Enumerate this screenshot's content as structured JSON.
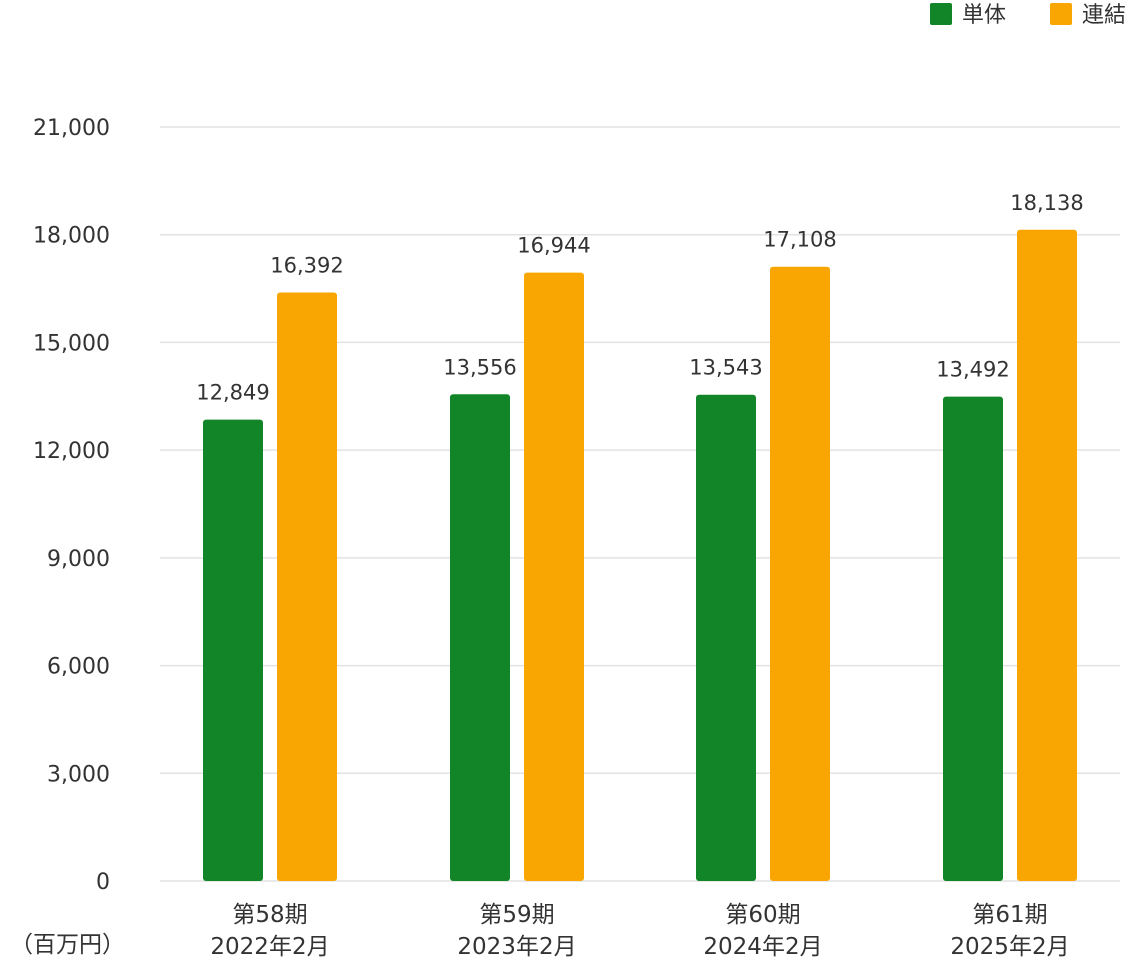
{
  "chart_data": {
    "type": "bar",
    "categories": [
      [
        "第58期",
        "2022年2月"
      ],
      [
        "第59期",
        "2023年2月"
      ],
      [
        "第60期",
        "2024年2月"
      ],
      [
        "第61期",
        "2025年2月"
      ]
    ],
    "series": [
      {
        "name": "単体",
        "color": "#128529",
        "values": [
          12849,
          13556,
          13543,
          13492
        ]
      },
      {
        "name": "連結",
        "color": "#F9A602",
        "values": [
          16392,
          16944,
          17108,
          18138
        ]
      }
    ],
    "value_labels": [
      [
        "12,849",
        "13,556",
        "13,543",
        "13,492"
      ],
      [
        "16,392",
        "16,944",
        "17,108",
        "18,138"
      ]
    ],
    "ylim": [
      0,
      21000
    ],
    "yticks": [
      0,
      3000,
      6000,
      9000,
      12000,
      15000,
      18000,
      21000
    ],
    "ytick_labels": [
      "0",
      "3,000",
      "6,000",
      "9,000",
      "12,000",
      "15,000",
      "18,000",
      "21,000"
    ],
    "unit_label": "（百万円）",
    "grid": true,
    "legend_position": "top-right"
  }
}
